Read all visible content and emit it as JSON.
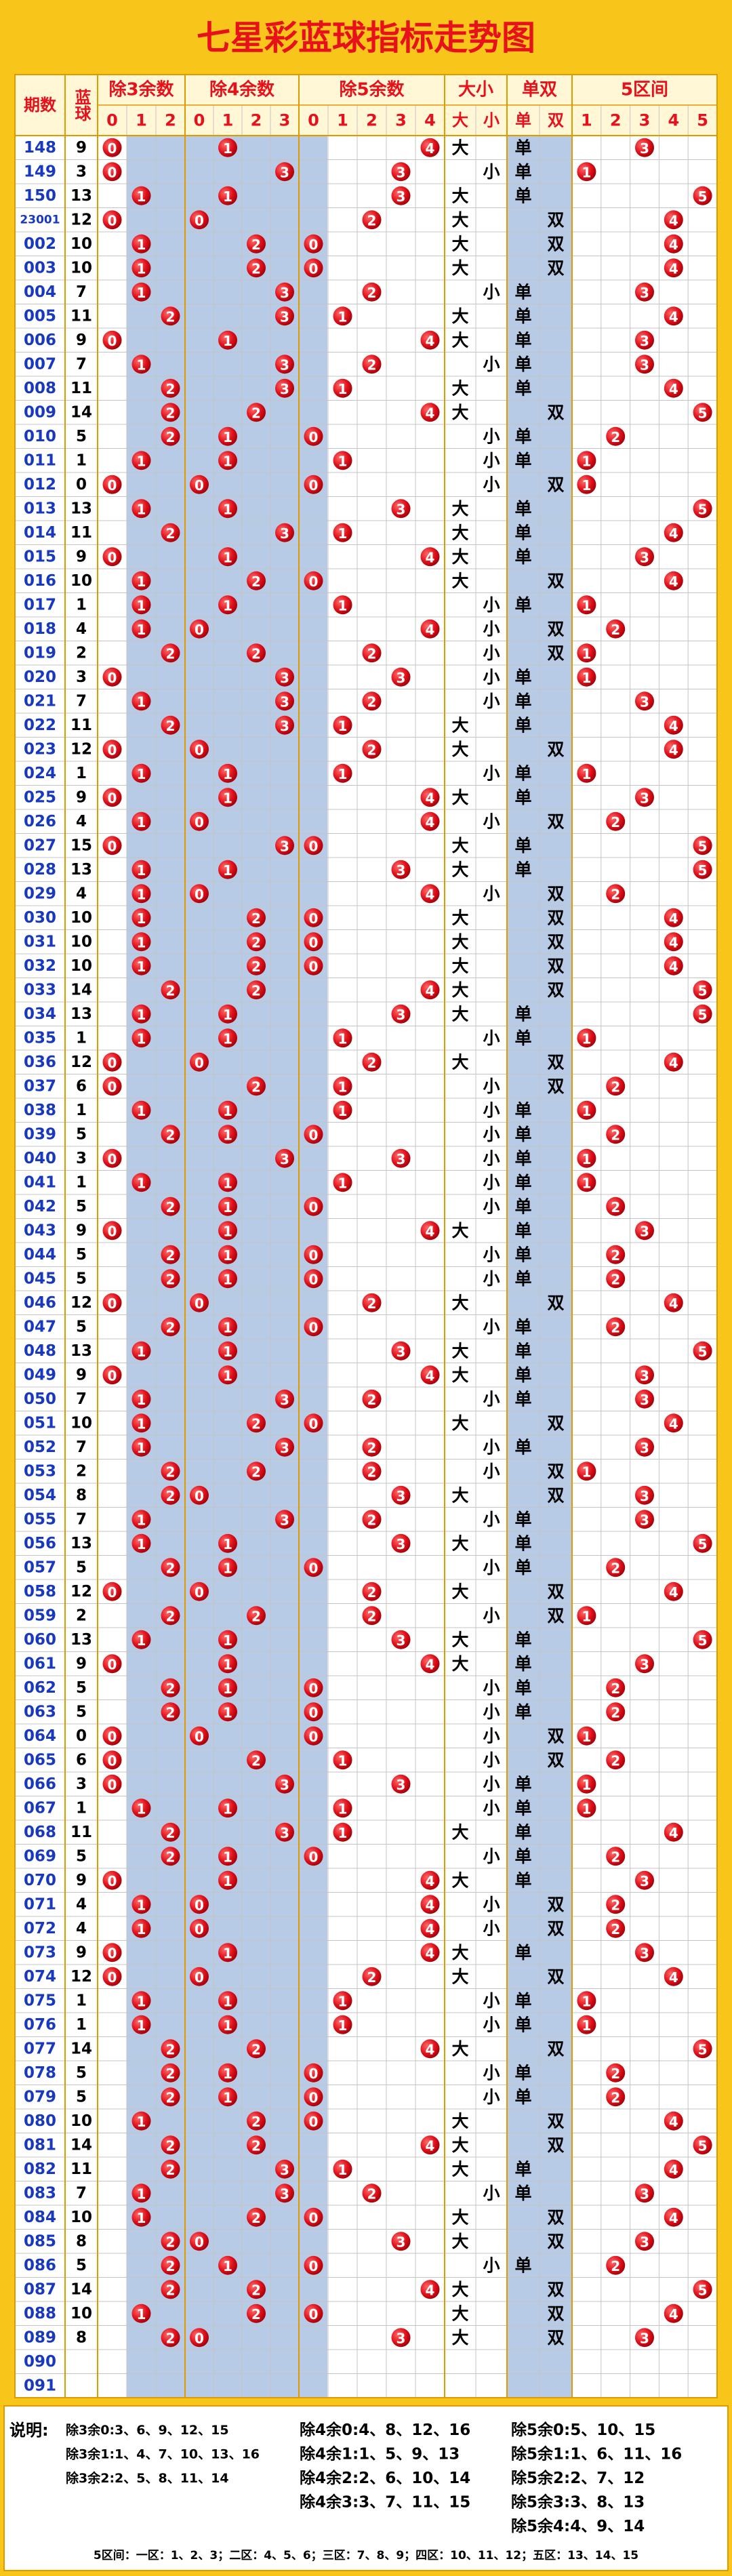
{
  "title": "七星彩蓝球指标走势图",
  "headers": {
    "period": "期数",
    "ball": "蓝球",
    "groups": [
      {
        "title": "除3余数",
        "cols": [
          0,
          1,
          2
        ]
      },
      {
        "title": "除4余数",
        "cols": [
          0,
          1,
          2,
          3
        ]
      },
      {
        "title": "除5余数",
        "cols": [
          0,
          1,
          2,
          3,
          4
        ]
      },
      {
        "title": "大小",
        "cols": [
          "大",
          "小"
        ]
      },
      {
        "title": "单双",
        "cols": [
          "单",
          "双"
        ]
      },
      {
        "title": "5区间",
        "cols": [
          1,
          2,
          3,
          4,
          5
        ]
      }
    ]
  },
  "rows": [
    [
      "148",
      9,
      0,
      1,
      4,
      "大",
      "单",
      3
    ],
    [
      "149",
      3,
      0,
      3,
      3,
      "小",
      "单",
      1
    ],
    [
      "150",
      13,
      1,
      1,
      3,
      "大",
      "单",
      5
    ],
    [
      "23001",
      12,
      0,
      0,
      2,
      "大",
      "双",
      4
    ],
    [
      "002",
      10,
      1,
      2,
      0,
      "大",
      "双",
      4
    ],
    [
      "003",
      10,
      1,
      2,
      0,
      "大",
      "双",
      4
    ],
    [
      "004",
      7,
      1,
      3,
      2,
      "小",
      "单",
      3
    ],
    [
      "005",
      11,
      2,
      3,
      1,
      "大",
      "单",
      4
    ],
    [
      "006",
      9,
      0,
      1,
      4,
      "大",
      "单",
      3
    ],
    [
      "007",
      7,
      1,
      3,
      2,
      "小",
      "单",
      3
    ],
    [
      "008",
      11,
      2,
      3,
      1,
      "大",
      "单",
      4
    ],
    [
      "009",
      14,
      2,
      2,
      4,
      "大",
      "双",
      5
    ],
    [
      "010",
      5,
      2,
      1,
      0,
      "小",
      "单",
      2
    ],
    [
      "011",
      1,
      1,
      1,
      1,
      "小",
      "单",
      1
    ],
    [
      "012",
      0,
      0,
      0,
      0,
      "小",
      "双",
      1
    ],
    [
      "013",
      13,
      1,
      1,
      3,
      "大",
      "单",
      5
    ],
    [
      "014",
      11,
      2,
      3,
      1,
      "大",
      "单",
      4
    ],
    [
      "015",
      9,
      0,
      1,
      4,
      "大",
      "单",
      3
    ],
    [
      "016",
      10,
      1,
      2,
      0,
      "大",
      "双",
      4
    ],
    [
      "017",
      1,
      1,
      1,
      1,
      "小",
      "单",
      1
    ],
    [
      "018",
      4,
      1,
      0,
      4,
      "小",
      "双",
      2
    ],
    [
      "019",
      2,
      2,
      2,
      2,
      "小",
      "双",
      1
    ],
    [
      "020",
      3,
      0,
      3,
      3,
      "小",
      "单",
      1
    ],
    [
      "021",
      7,
      1,
      3,
      2,
      "小",
      "单",
      3
    ],
    [
      "022",
      11,
      2,
      3,
      1,
      "大",
      "单",
      4
    ],
    [
      "023",
      12,
      0,
      0,
      2,
      "大",
      "双",
      4
    ],
    [
      "024",
      1,
      1,
      1,
      1,
      "小",
      "单",
      1
    ],
    [
      "025",
      9,
      0,
      1,
      4,
      "大",
      "单",
      3
    ],
    [
      "026",
      4,
      1,
      0,
      4,
      "小",
      "双",
      2
    ],
    [
      "027",
      15,
      0,
      3,
      0,
      "大",
      "单",
      5
    ],
    [
      "028",
      13,
      1,
      1,
      3,
      "大",
      "单",
      5
    ],
    [
      "029",
      4,
      1,
      0,
      4,
      "小",
      "双",
      2
    ],
    [
      "030",
      10,
      1,
      2,
      0,
      "大",
      "双",
      4
    ],
    [
      "031",
      10,
      1,
      2,
      0,
      "大",
      "双",
      4
    ],
    [
      "032",
      10,
      1,
      2,
      0,
      "大",
      "双",
      4
    ],
    [
      "033",
      14,
      2,
      2,
      4,
      "大",
      "双",
      5
    ],
    [
      "034",
      13,
      1,
      1,
      3,
      "大",
      "单",
      5
    ],
    [
      "035",
      1,
      1,
      1,
      1,
      "小",
      "单",
      1
    ],
    [
      "036",
      12,
      0,
      0,
      2,
      "大",
      "双",
      4
    ],
    [
      "037",
      6,
      0,
      2,
      1,
      "小",
      "双",
      2
    ],
    [
      "038",
      1,
      1,
      1,
      1,
      "小",
      "单",
      1
    ],
    [
      "039",
      5,
      2,
      1,
      0,
      "小",
      "单",
      2
    ],
    [
      "040",
      3,
      0,
      3,
      3,
      "小",
      "单",
      1
    ],
    [
      "041",
      1,
      1,
      1,
      1,
      "小",
      "单",
      1
    ],
    [
      "042",
      5,
      2,
      1,
      0,
      "小",
      "单",
      2
    ],
    [
      "043",
      9,
      0,
      1,
      4,
      "大",
      "单",
      3
    ],
    [
      "044",
      5,
      2,
      1,
      0,
      "小",
      "单",
      2
    ],
    [
      "045",
      5,
      2,
      1,
      0,
      "小",
      "单",
      2
    ],
    [
      "046",
      12,
      0,
      0,
      2,
      "大",
      "双",
      4
    ],
    [
      "047",
      5,
      2,
      1,
      0,
      "小",
      "单",
      2
    ],
    [
      "048",
      13,
      1,
      1,
      3,
      "大",
      "单",
      5
    ],
    [
      "049",
      9,
      0,
      1,
      4,
      "大",
      "单",
      3
    ],
    [
      "050",
      7,
      1,
      3,
      2,
      "小",
      "单",
      3
    ],
    [
      "051",
      10,
      1,
      2,
      0,
      "大",
      "双",
      4
    ],
    [
      "052",
      7,
      1,
      3,
      2,
      "小",
      "单",
      3
    ],
    [
      "053",
      2,
      2,
      2,
      2,
      "小",
      "双",
      1
    ],
    [
      "054",
      8,
      2,
      0,
      3,
      "大",
      "双",
      3
    ],
    [
      "055",
      7,
      1,
      3,
      2,
      "小",
      "单",
      3
    ],
    [
      "056",
      13,
      1,
      1,
      3,
      "大",
      "单",
      5
    ],
    [
      "057",
      5,
      2,
      1,
      0,
      "小",
      "单",
      2
    ],
    [
      "058",
      12,
      0,
      0,
      2,
      "大",
      "双",
      4
    ],
    [
      "059",
      2,
      2,
      2,
      2,
      "小",
      "双",
      1
    ],
    [
      "060",
      13,
      1,
      1,
      3,
      "大",
      "单",
      5
    ],
    [
      "061",
      9,
      0,
      1,
      4,
      "大",
      "单",
      3
    ],
    [
      "062",
      5,
      2,
      1,
      0,
      "小",
      "单",
      2
    ],
    [
      "063",
      5,
      2,
      1,
      0,
      "小",
      "单",
      2
    ],
    [
      "064",
      0,
      0,
      0,
      0,
      "小",
      "双",
      1
    ],
    [
      "065",
      6,
      0,
      2,
      1,
      "小",
      "双",
      2
    ],
    [
      "066",
      3,
      0,
      3,
      3,
      "小",
      "单",
      1
    ],
    [
      "067",
      1,
      1,
      1,
      1,
      "小",
      "单",
      1
    ],
    [
      "068",
      11,
      2,
      3,
      1,
      "大",
      "单",
      4
    ],
    [
      "069",
      5,
      2,
      1,
      0,
      "小",
      "单",
      2
    ],
    [
      "070",
      9,
      0,
      1,
      4,
      "大",
      "单",
      3
    ],
    [
      "071",
      4,
      1,
      0,
      4,
      "小",
      "双",
      2
    ],
    [
      "072",
      4,
      1,
      0,
      4,
      "小",
      "双",
      2
    ],
    [
      "073",
      9,
      0,
      1,
      4,
      "大",
      "单",
      3
    ],
    [
      "074",
      12,
      0,
      0,
      2,
      "大",
      "双",
      4
    ],
    [
      "075",
      1,
      1,
      1,
      1,
      "小",
      "单",
      1
    ],
    [
      "076",
      1,
      1,
      1,
      1,
      "小",
      "单",
      1
    ],
    [
      "077",
      14,
      2,
      2,
      4,
      "大",
      "双",
      5
    ],
    [
      "078",
      5,
      2,
      1,
      0,
      "小",
      "单",
      2
    ],
    [
      "079",
      5,
      2,
      1,
      0,
      "小",
      "单",
      2
    ],
    [
      "080",
      10,
      1,
      2,
      0,
      "大",
      "双",
      4
    ],
    [
      "081",
      14,
      2,
      2,
      4,
      "大",
      "双",
      5
    ],
    [
      "082",
      11,
      2,
      3,
      1,
      "大",
      "单",
      4
    ],
    [
      "083",
      7,
      1,
      3,
      2,
      "小",
      "单",
      3
    ],
    [
      "084",
      10,
      1,
      2,
      0,
      "大",
      "双",
      4
    ],
    [
      "085",
      8,
      2,
      0,
      3,
      "大",
      "双",
      3
    ],
    [
      "086",
      5,
      2,
      1,
      0,
      "小",
      "单",
      2
    ],
    [
      "087",
      14,
      2,
      2,
      4,
      "大",
      "双",
      5
    ],
    [
      "088",
      10,
      1,
      2,
      0,
      "大",
      "双",
      4
    ],
    [
      "089",
      8,
      2,
      0,
      3,
      "大",
      "双",
      3
    ],
    [
      "090",
      null,
      null,
      null,
      null,
      null,
      null,
      null
    ],
    [
      "091",
      null,
      null,
      null,
      null,
      null,
      null,
      null
    ]
  ],
  "legend": {
    "label": "说明:",
    "columns": [
      [
        "除3余0:3、6、9、12、15",
        "除3余1:1、4、7、10、13、16",
        "除3余2:2、5、8、11、14"
      ],
      [
        "除4余0:4、8、12、16",
        "除4余1:1、5、9、13",
        "除4余2:2、6、10、14",
        "除4余3:3、7、11、15"
      ],
      [
        "除5余0:5、10、15",
        "除5余1:1、6、11、16",
        "除5余2:2、7、12",
        "除5余3:3、8、13",
        "除5余4:4、9、14"
      ]
    ],
    "zones": "5区间：一区：1、2、3；二区：4、5、6；三区：7、8、9；四区：10、11、12；五区：13、14、15"
  }
}
